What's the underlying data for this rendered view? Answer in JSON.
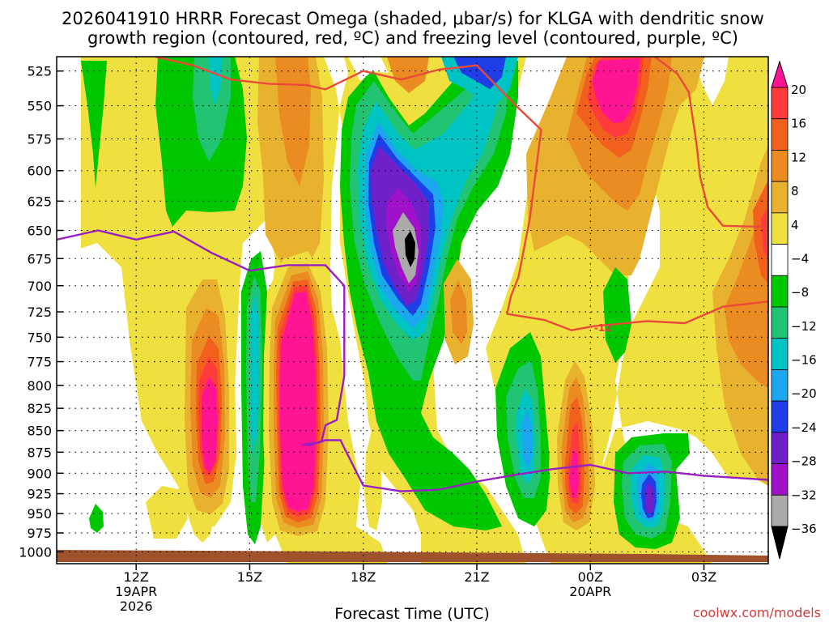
{
  "title": {
    "line1": "2026041910 HRRR Forecast Omega (shaded, μbar/s) for KLGA with dendritic snow",
    "line2": "growth region (contoured, red, ºC) and freezing level (contoured, purple, ºC)"
  },
  "credit": "coolwx.com/models",
  "colors": {
    "dgz_contour": "#ea4a3a",
    "freezing_contour": "#9a1fc0",
    "ground": "#a0522d"
  },
  "chart_data": {
    "type": "heatmap",
    "title": "2026041910 HRRR Forecast Omega (shaded, μbar/s) for KLGA with dendritic snow growth region (contoured, red, ºC) and freezing level (contoured, purple, ºC)",
    "xlabel": "Forecast Time (UTC)",
    "ylabel": "",
    "x_range_hours": [
      9.9,
      28.7
    ],
    "y_range_mb": [
      515,
      1016
    ],
    "y_scale": "log",
    "y_ticks": [
      525,
      550,
      575,
      600,
      625,
      650,
      675,
      700,
      725,
      750,
      775,
      800,
      825,
      850,
      875,
      900,
      925,
      950,
      975,
      1000
    ],
    "x_ticks": [
      {
        "hour": 12,
        "label": "12Z",
        "date": "19APR",
        "year": "2026"
      },
      {
        "hour": 15,
        "label": "15Z",
        "date": "",
        "year": ""
      },
      {
        "hour": 18,
        "label": "18Z",
        "date": "",
        "year": ""
      },
      {
        "hour": 21,
        "label": "21Z",
        "date": "",
        "year": ""
      },
      {
        "hour": 24,
        "label": "00Z",
        "date": "20APR",
        "year": ""
      },
      {
        "hour": 27,
        "label": "03Z",
        "date": "",
        "year": ""
      }
    ],
    "grid": true,
    "colorbar": {
      "labels": [
        "20",
        "16",
        "12",
        "8",
        "4",
        "−4",
        "−8",
        "−12",
        "−16",
        "−20",
        "−24",
        "−28",
        "−32",
        "−36"
      ],
      "colors": [
        "#ff1493",
        "#ff3b3b",
        "#f2601e",
        "#eb8c22",
        "#e8b22e",
        "#efe040",
        "#ffffff",
        "#00c800",
        "#20c473",
        "#00c4c4",
        "#1ca6ee",
        "#1f3ee8",
        "#7020c8",
        "#9f12c9",
        "#aaaaaa",
        "#000000"
      ]
    },
    "contour_labels": [
      {
        "text": "-12",
        "hour": 24.1,
        "mb": 740
      }
    ],
    "series": [
      {
        "name": "Freezing level (0ºC)",
        "color": "#9a1fc0",
        "points": [
          [
            9.9,
            658
          ],
          [
            11,
            650
          ],
          [
            12,
            658
          ],
          [
            13,
            651
          ],
          [
            14,
            670
          ],
          [
            15,
            686
          ],
          [
            16,
            681
          ],
          [
            17,
            681
          ],
          [
            17.5,
            700
          ],
          [
            17.5,
            790
          ],
          [
            17.3,
            838
          ],
          [
            17,
            844
          ],
          [
            16.9,
            862
          ],
          [
            16.6,
            867
          ],
          [
            16.4,
            866
          ],
          [
            16.8,
            864
          ],
          [
            17,
            861
          ],
          [
            17.4,
            861
          ],
          [
            17.5,
            870
          ],
          [
            18,
            915
          ],
          [
            19,
            922
          ],
          [
            20,
            920
          ],
          [
            21,
            910
          ],
          [
            22,
            902
          ],
          [
            23,
            895
          ],
          [
            24,
            890
          ],
          [
            25,
            900
          ],
          [
            26,
            898
          ],
          [
            27,
            903
          ],
          [
            28.7,
            908
          ]
        ]
      },
      {
        "name": "Dendritic growth region (-12ºC)",
        "color": "#ea4a3a",
        "points": [
          [
            12.5,
            515
          ],
          [
            13.5,
            521
          ],
          [
            14.5,
            531
          ],
          [
            15.5,
            534
          ],
          [
            16.5,
            535
          ],
          [
            17,
            538
          ],
          [
            18,
            525
          ],
          [
            19,
            531
          ],
          [
            20,
            524
          ],
          [
            21,
            521
          ],
          [
            22,
            549
          ],
          [
            22.7,
            568
          ],
          [
            22.4,
            640
          ],
          [
            22.1,
            692
          ],
          [
            21.9,
            710
          ],
          [
            21.8,
            727
          ],
          [
            22.3,
            730
          ],
          [
            22.8,
            733
          ],
          [
            23.5,
            743
          ],
          [
            24.1,
            739
          ],
          [
            25.5,
            734
          ],
          [
            26.5,
            736
          ],
          [
            27.5,
            720
          ],
          [
            28.7,
            715
          ]
        ]
      },
      {
        "name": "Dendritic growth region (-17ºC, upper right)",
        "color": "#ea4a3a",
        "points": [
          [
            25.7,
            515
          ],
          [
            26.3,
            527
          ],
          [
            26.6,
            540
          ],
          [
            26.8,
            578
          ],
          [
            26.9,
            605
          ],
          [
            27.1,
            630
          ],
          [
            27.5,
            646
          ],
          [
            28.7,
            647
          ]
        ]
      }
    ]
  }
}
